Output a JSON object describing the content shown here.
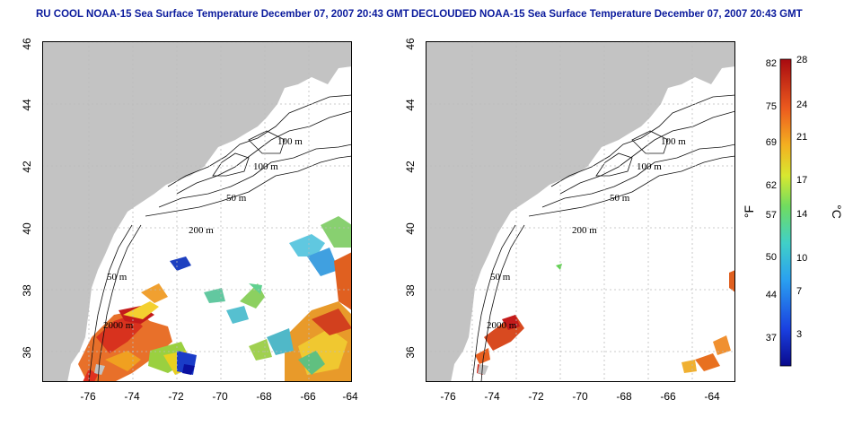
{
  "panels": [
    {
      "title": "RU COOL NOAA-15 Sea Surface Temperature December 07, 2007 20:43 GMT"
    },
    {
      "title": "DECLOUDED NOAA-15 Sea Surface Temperature December 07, 2007 20:43 GMT"
    }
  ],
  "axes": {
    "x_ticks": [
      "-76",
      "-74",
      "-72",
      "-70",
      "-68",
      "-66",
      "-64"
    ],
    "y_ticks": [
      "46",
      "44",
      "42",
      "40",
      "38",
      "36"
    ]
  },
  "contour_labels": [
    "100 m",
    "100 m",
    "50 m",
    "200 m",
    "50 m",
    "2000 m"
  ],
  "colorbar": {
    "unit_f": "°F",
    "unit_c": "°C",
    "f_ticks": [
      "82",
      "75",
      "69",
      "62",
      "57",
      "50",
      "44",
      "37"
    ],
    "c_ticks": [
      "28",
      "24",
      "21",
      "17",
      "14",
      "10",
      "7",
      "3"
    ]
  },
  "colors": {
    "land": "#c3c3c3",
    "title": "#0a1a9c",
    "grid": "#bbbbbb"
  }
}
